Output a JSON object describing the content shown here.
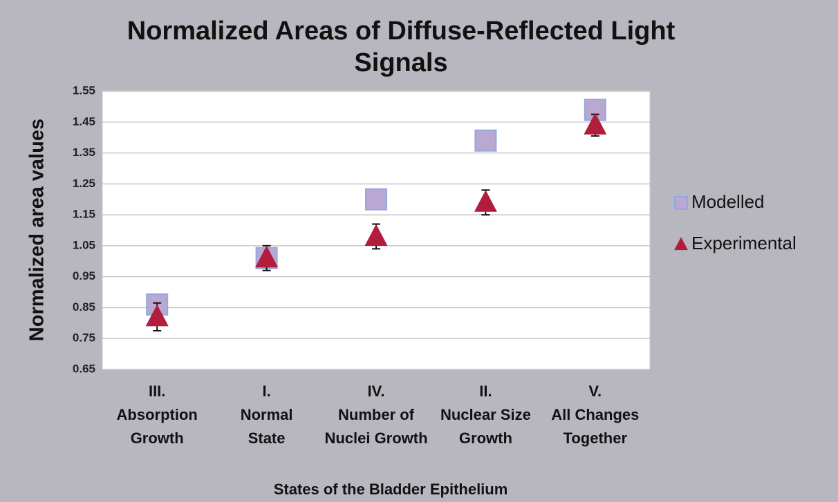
{
  "chart_data": {
    "type": "scatter",
    "title": "Normalized Areas of Diffuse-Reflected Light Signals",
    "ylabel": "Normalized area values",
    "xlabel": "States of the Bladder Epithelium",
    "categories": [
      "III.\nAbsorption\nGrowth",
      "I.\nNormal\nState",
      "IV.\nNumber of\nNuclei Growth",
      "II.\nNuclear Size\nGrowth",
      "V.\nAll Changes\nTogether"
    ],
    "ylim": [
      0.65,
      1.55
    ],
    "yticks": [
      0.65,
      0.75,
      0.85,
      0.95,
      1.05,
      1.15,
      1.25,
      1.35,
      1.45,
      1.55
    ],
    "grid": true,
    "legend": "right",
    "series": [
      {
        "name": "Modelled",
        "marker": "square",
        "color": "#b9a9d2",
        "edge": "#93a8e0",
        "values": [
          0.86,
          1.01,
          1.2,
          1.39,
          1.49
        ]
      },
      {
        "name": "Experimental",
        "marker": "triangle",
        "color": "#b31d3d",
        "values": [
          0.82,
          1.01,
          1.08,
          1.19,
          1.44
        ],
        "error": [
          0.045,
          0.04,
          0.04,
          0.04,
          0.035
        ]
      }
    ]
  }
}
